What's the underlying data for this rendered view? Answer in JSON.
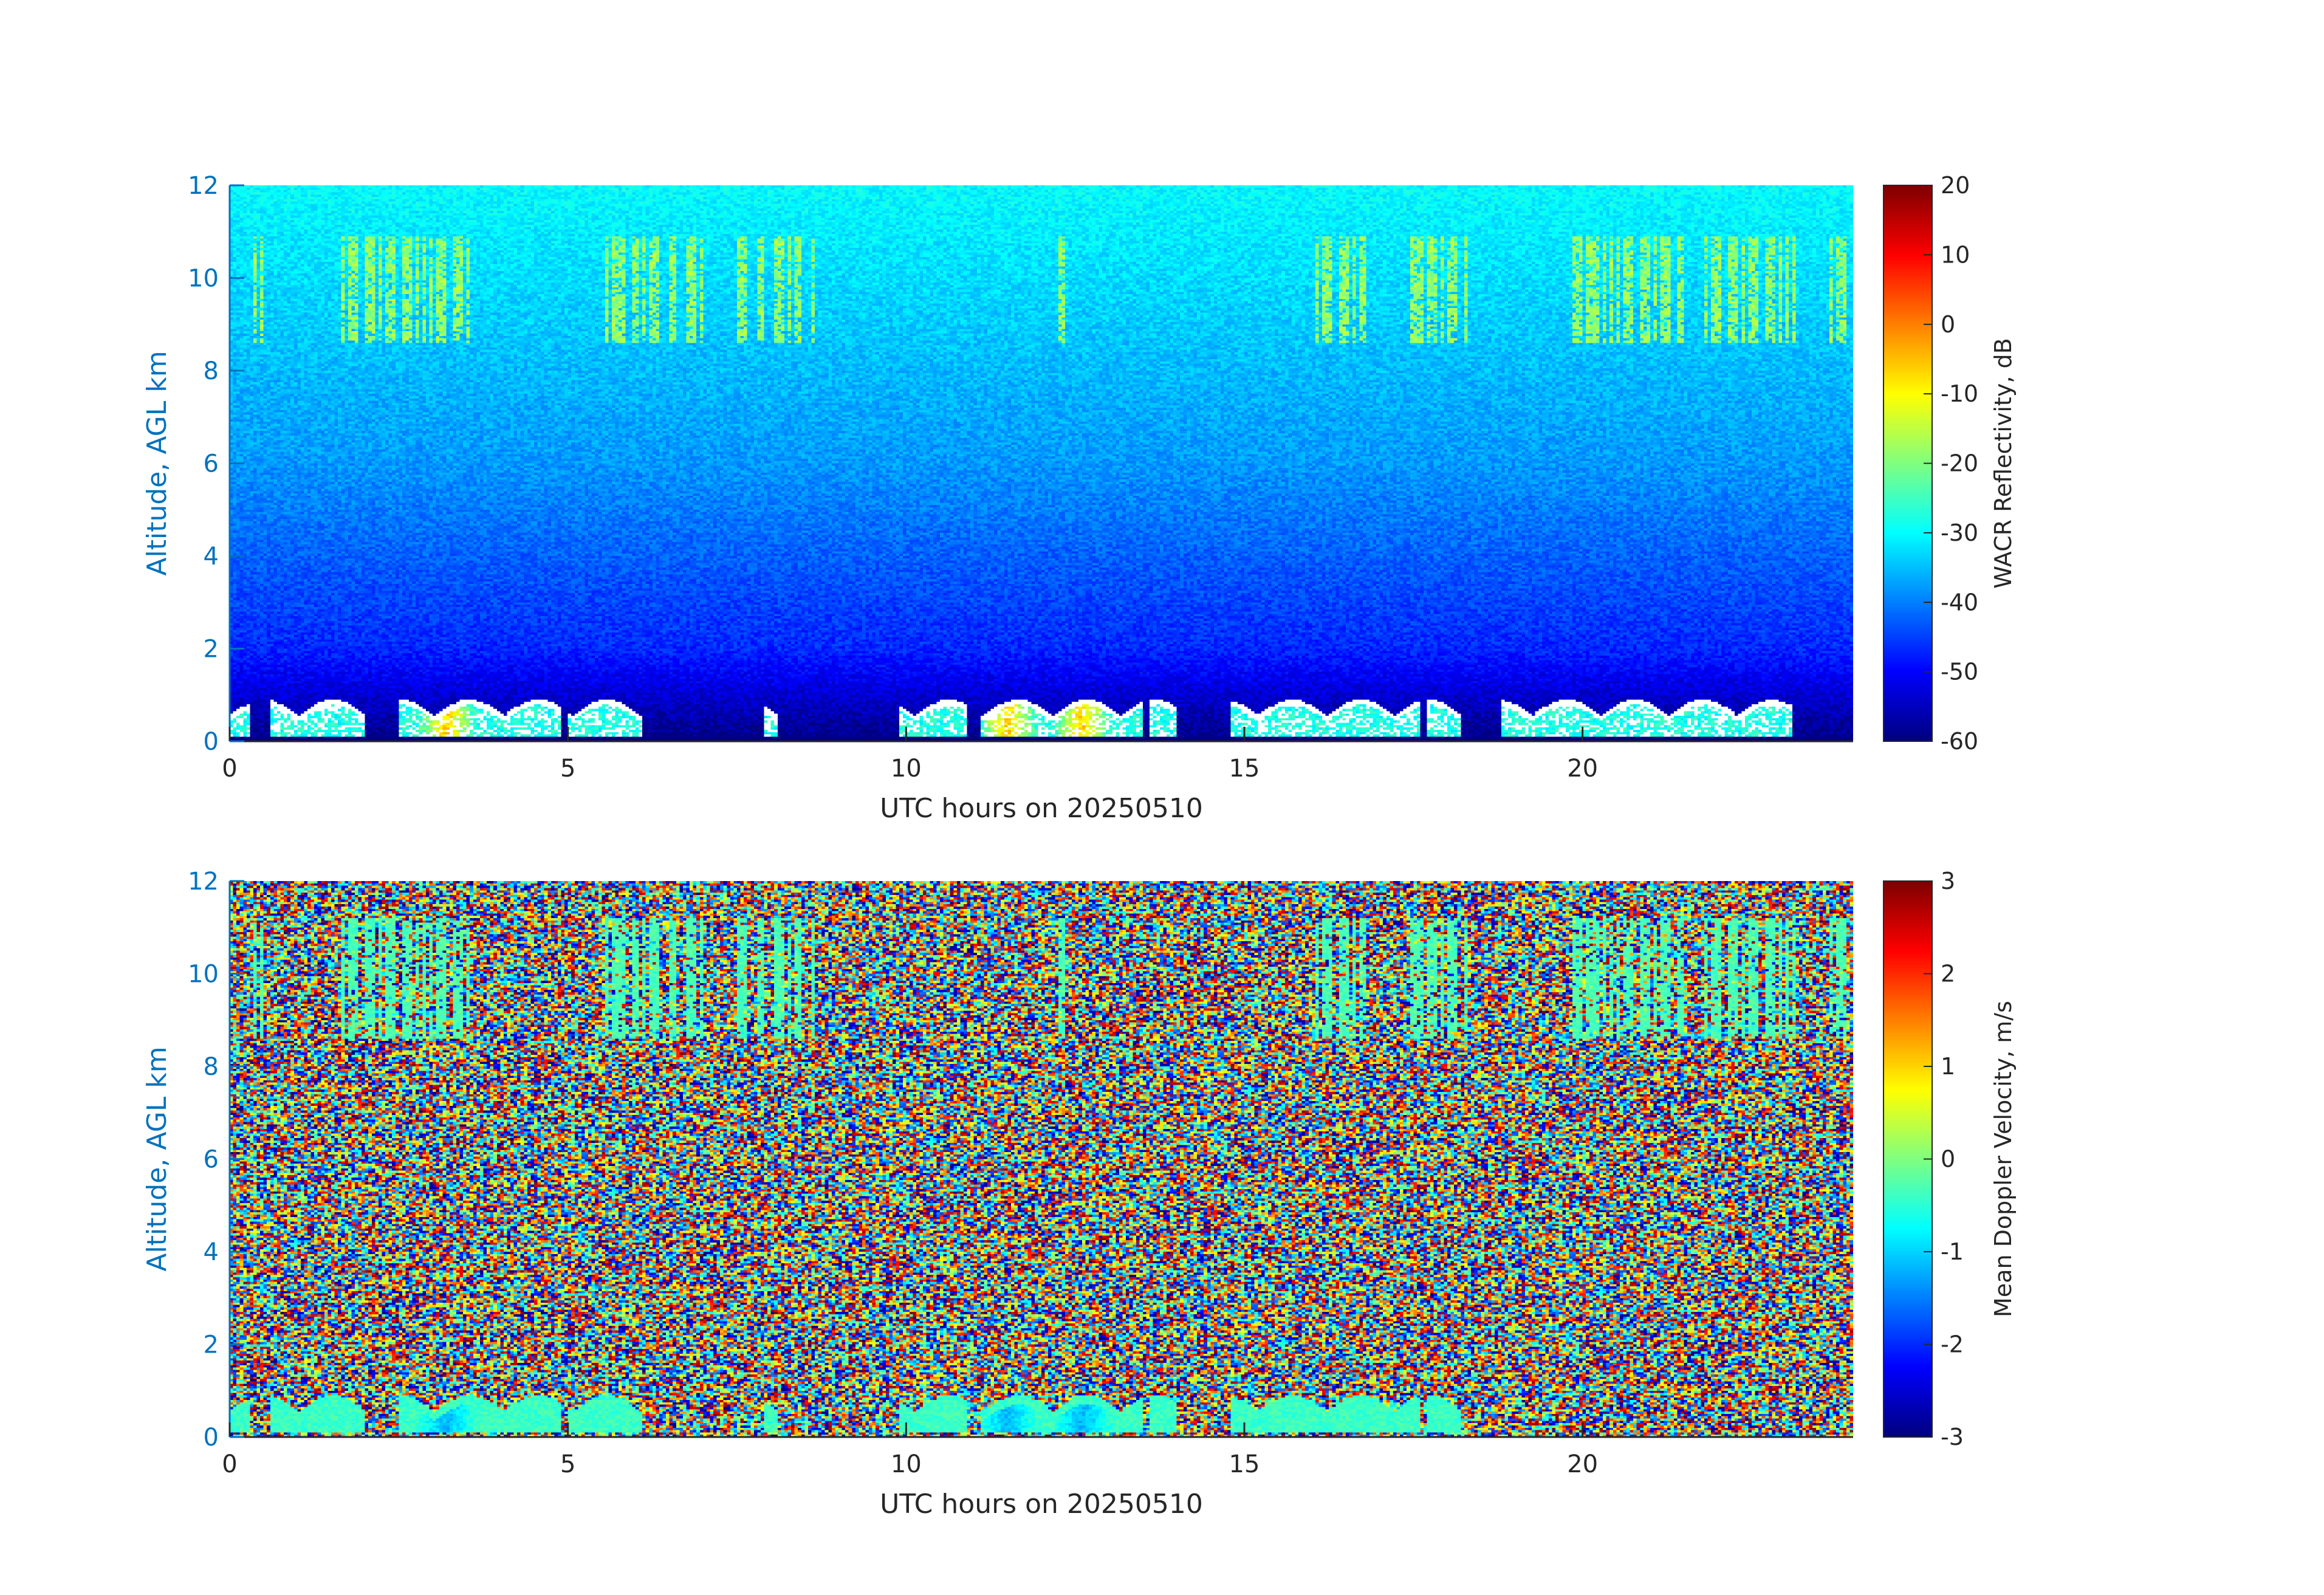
{
  "chart_data": [
    {
      "type": "heatmap",
      "title": "",
      "xlabel": "UTC hours on 20250510",
      "ylabel": "Altitude, AGL km",
      "xlim": [
        0,
        24
      ],
      "ylim": [
        0,
        12
      ],
      "xticks": [
        0,
        5,
        10,
        15,
        20
      ],
      "yticks": [
        0,
        2,
        4,
        6,
        8,
        10,
        12
      ],
      "colorbar": {
        "label": "WACR Reflectivity, dB",
        "range": [
          -60,
          20
        ],
        "ticks": [
          20,
          10,
          0,
          -10,
          -20,
          -30,
          -40,
          -50,
          -60
        ],
        "colormap": "jet"
      },
      "background": {
        "description_values": "noise floor rising with altitude",
        "z_at_0km": -60,
        "z_at_2km": -47,
        "z_at_6km": -38,
        "z_at_12km": -30
      },
      "features": {
        "low_cloud_segments_hours": [
          [
            0.0,
            0.3
          ],
          [
            0.6,
            2.0
          ],
          [
            2.5,
            4.9
          ],
          [
            5.0,
            6.1
          ],
          [
            7.9,
            8.1
          ],
          [
            9.9,
            10.9
          ],
          [
            11.1,
            13.5
          ],
          [
            13.6,
            14.0
          ],
          [
            14.8,
            17.6
          ],
          [
            17.7,
            18.2
          ],
          [
            18.8,
            23.1
          ]
        ],
        "low_cloud_peak_hours": [
          3.2,
          11.5,
          12.6
        ],
        "cirrus_segments_hours": [
          [
            0.3,
            0.5
          ],
          [
            1.6,
            3.6
          ],
          [
            5.5,
            7.0
          ],
          [
            7.5,
            8.7
          ],
          [
            12.2,
            12.4
          ],
          [
            16.0,
            16.8
          ],
          [
            17.4,
            18.3
          ],
          [
            19.8,
            21.5
          ],
          [
            21.8,
            23.2
          ],
          [
            23.6,
            24.0
          ]
        ]
      }
    },
    {
      "type": "heatmap",
      "title": "",
      "xlabel": "UTC hours on 20250510",
      "ylabel": "Altitude, AGL km",
      "xlim": [
        0,
        24
      ],
      "ylim": [
        0,
        12
      ],
      "xticks": [
        0,
        5,
        10,
        15,
        20
      ],
      "yticks": [
        0,
        2,
        4,
        6,
        8,
        10,
        12
      ],
      "colorbar": {
        "label": "Mean Doppler Velocity, m/s",
        "range": [
          -3,
          3
        ],
        "ticks": [
          3,
          2,
          1,
          0,
          -1,
          -2,
          -3
        ],
        "colormap": "jet"
      },
      "background": {
        "description_values": "random noise spanning full range"
      },
      "features": {
        "low_cloud_velocity": -0.4,
        "low_cloud_core_velocity": -1.2,
        "cirrus_velocity": -0.3
      }
    }
  ]
}
